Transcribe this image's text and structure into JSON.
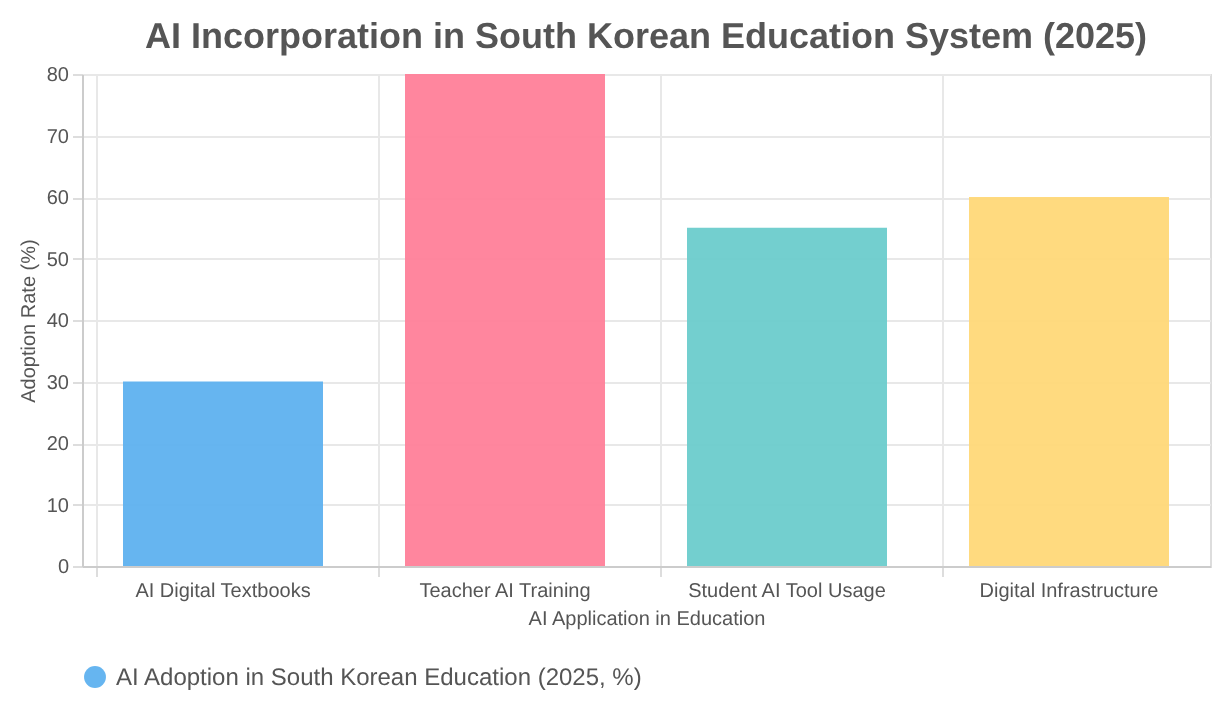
{
  "chart_data": {
    "type": "bar",
    "title": "AI Incorporation in South Korean Education System (2025)",
    "xlabel": "AI Application in Education",
    "ylabel": "Adoption Rate (%)",
    "categories": [
      "AI Digital Textbooks",
      "Teacher AI Training",
      "Student AI Tool Usage",
      "Digital Infrastructure"
    ],
    "series": [
      {
        "name": "AI Adoption in South Korean Education (2025, %)",
        "color": "#5eb1ef",
        "colors": [
          "#5eb1ef",
          "#ff8099",
          "#6ccccc",
          "#ffd878"
        ],
        "values": [
          30,
          80,
          55,
          60
        ]
      }
    ],
    "ylim": [
      0,
      80
    ],
    "yticks": [
      0,
      10,
      20,
      30,
      40,
      50,
      60,
      70,
      80
    ],
    "grid": true,
    "legend": "bottom"
  }
}
